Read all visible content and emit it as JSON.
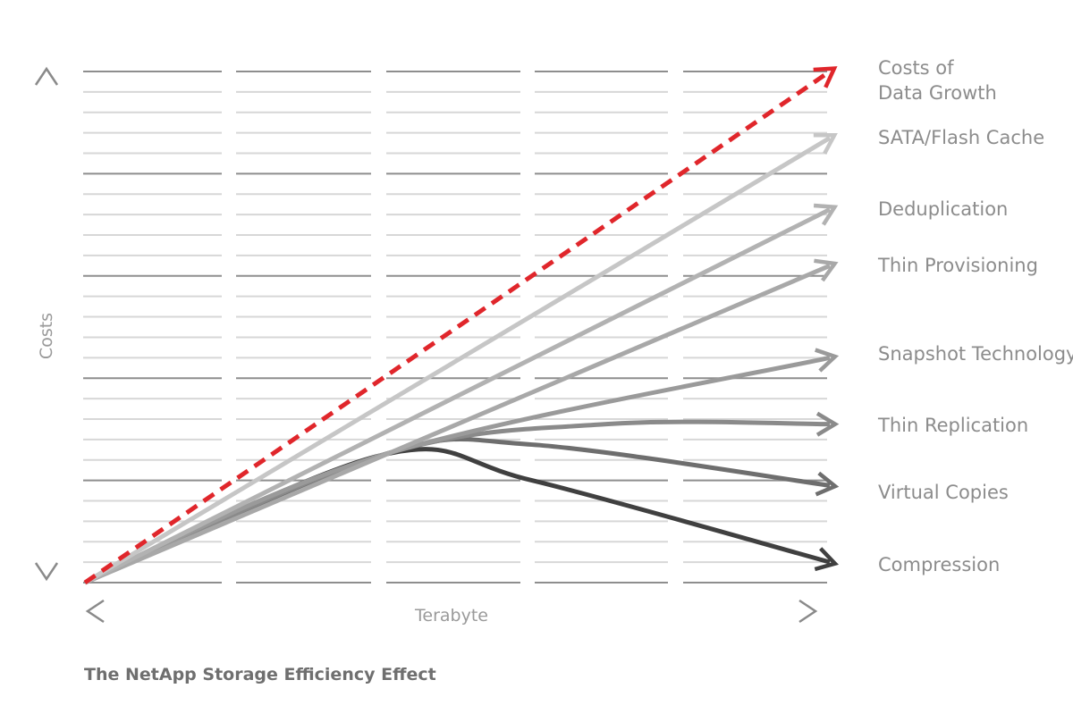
{
  "chart_data": {
    "type": "line",
    "caption": "The NetApp Storage Efficiency Effect",
    "xlabel": "Terabyte",
    "ylabel": "Costs",
    "grid": true,
    "axis_arrows": {
      "y_top": "^",
      "y_bottom": "v",
      "x_left": "<",
      "x_right": ">"
    },
    "series": [
      {
        "name": "Costs of Data Growth",
        "style": "dashed",
        "color": "#e0262b",
        "x": [
          0,
          1
        ],
        "y": [
          0,
          1.0
        ]
      },
      {
        "name": "SATA/Flash Cache",
        "color": "#c6c6c6",
        "x": [
          0,
          1
        ],
        "y": [
          0,
          0.87
        ]
      },
      {
        "name": "Deduplication",
        "color": "#b2b2b2",
        "x": [
          0,
          1
        ],
        "y": [
          0,
          0.73
        ]
      },
      {
        "name": "Thin Provisioning",
        "color": "#a8a8a8",
        "x": [
          0,
          1
        ],
        "y": [
          0,
          0.62
        ]
      },
      {
        "name": "Snapshot Technology",
        "color": "#9a9a9a",
        "x": [
          0,
          0.4,
          1
        ],
        "y": [
          0,
          0.25,
          0.44
        ]
      },
      {
        "name": "Thin Replication",
        "color": "#8a8a8a",
        "x": [
          0,
          0.4,
          0.7,
          1
        ],
        "y": [
          0,
          0.25,
          0.31,
          0.31
        ]
      },
      {
        "name": "Virtual Copies",
        "color": "#6e6e6e",
        "x": [
          0,
          0.4,
          0.6,
          1
        ],
        "y": [
          0,
          0.25,
          0.27,
          0.19
        ]
      },
      {
        "name": "Compression",
        "color": "#404040",
        "x": [
          0,
          0.4,
          0.6,
          1
        ],
        "y": [
          0,
          0.25,
          0.2,
          0.04
        ]
      }
    ],
    "labels": {
      "costs_line1": "Costs of",
      "costs_line2": "Data Growth"
    }
  }
}
